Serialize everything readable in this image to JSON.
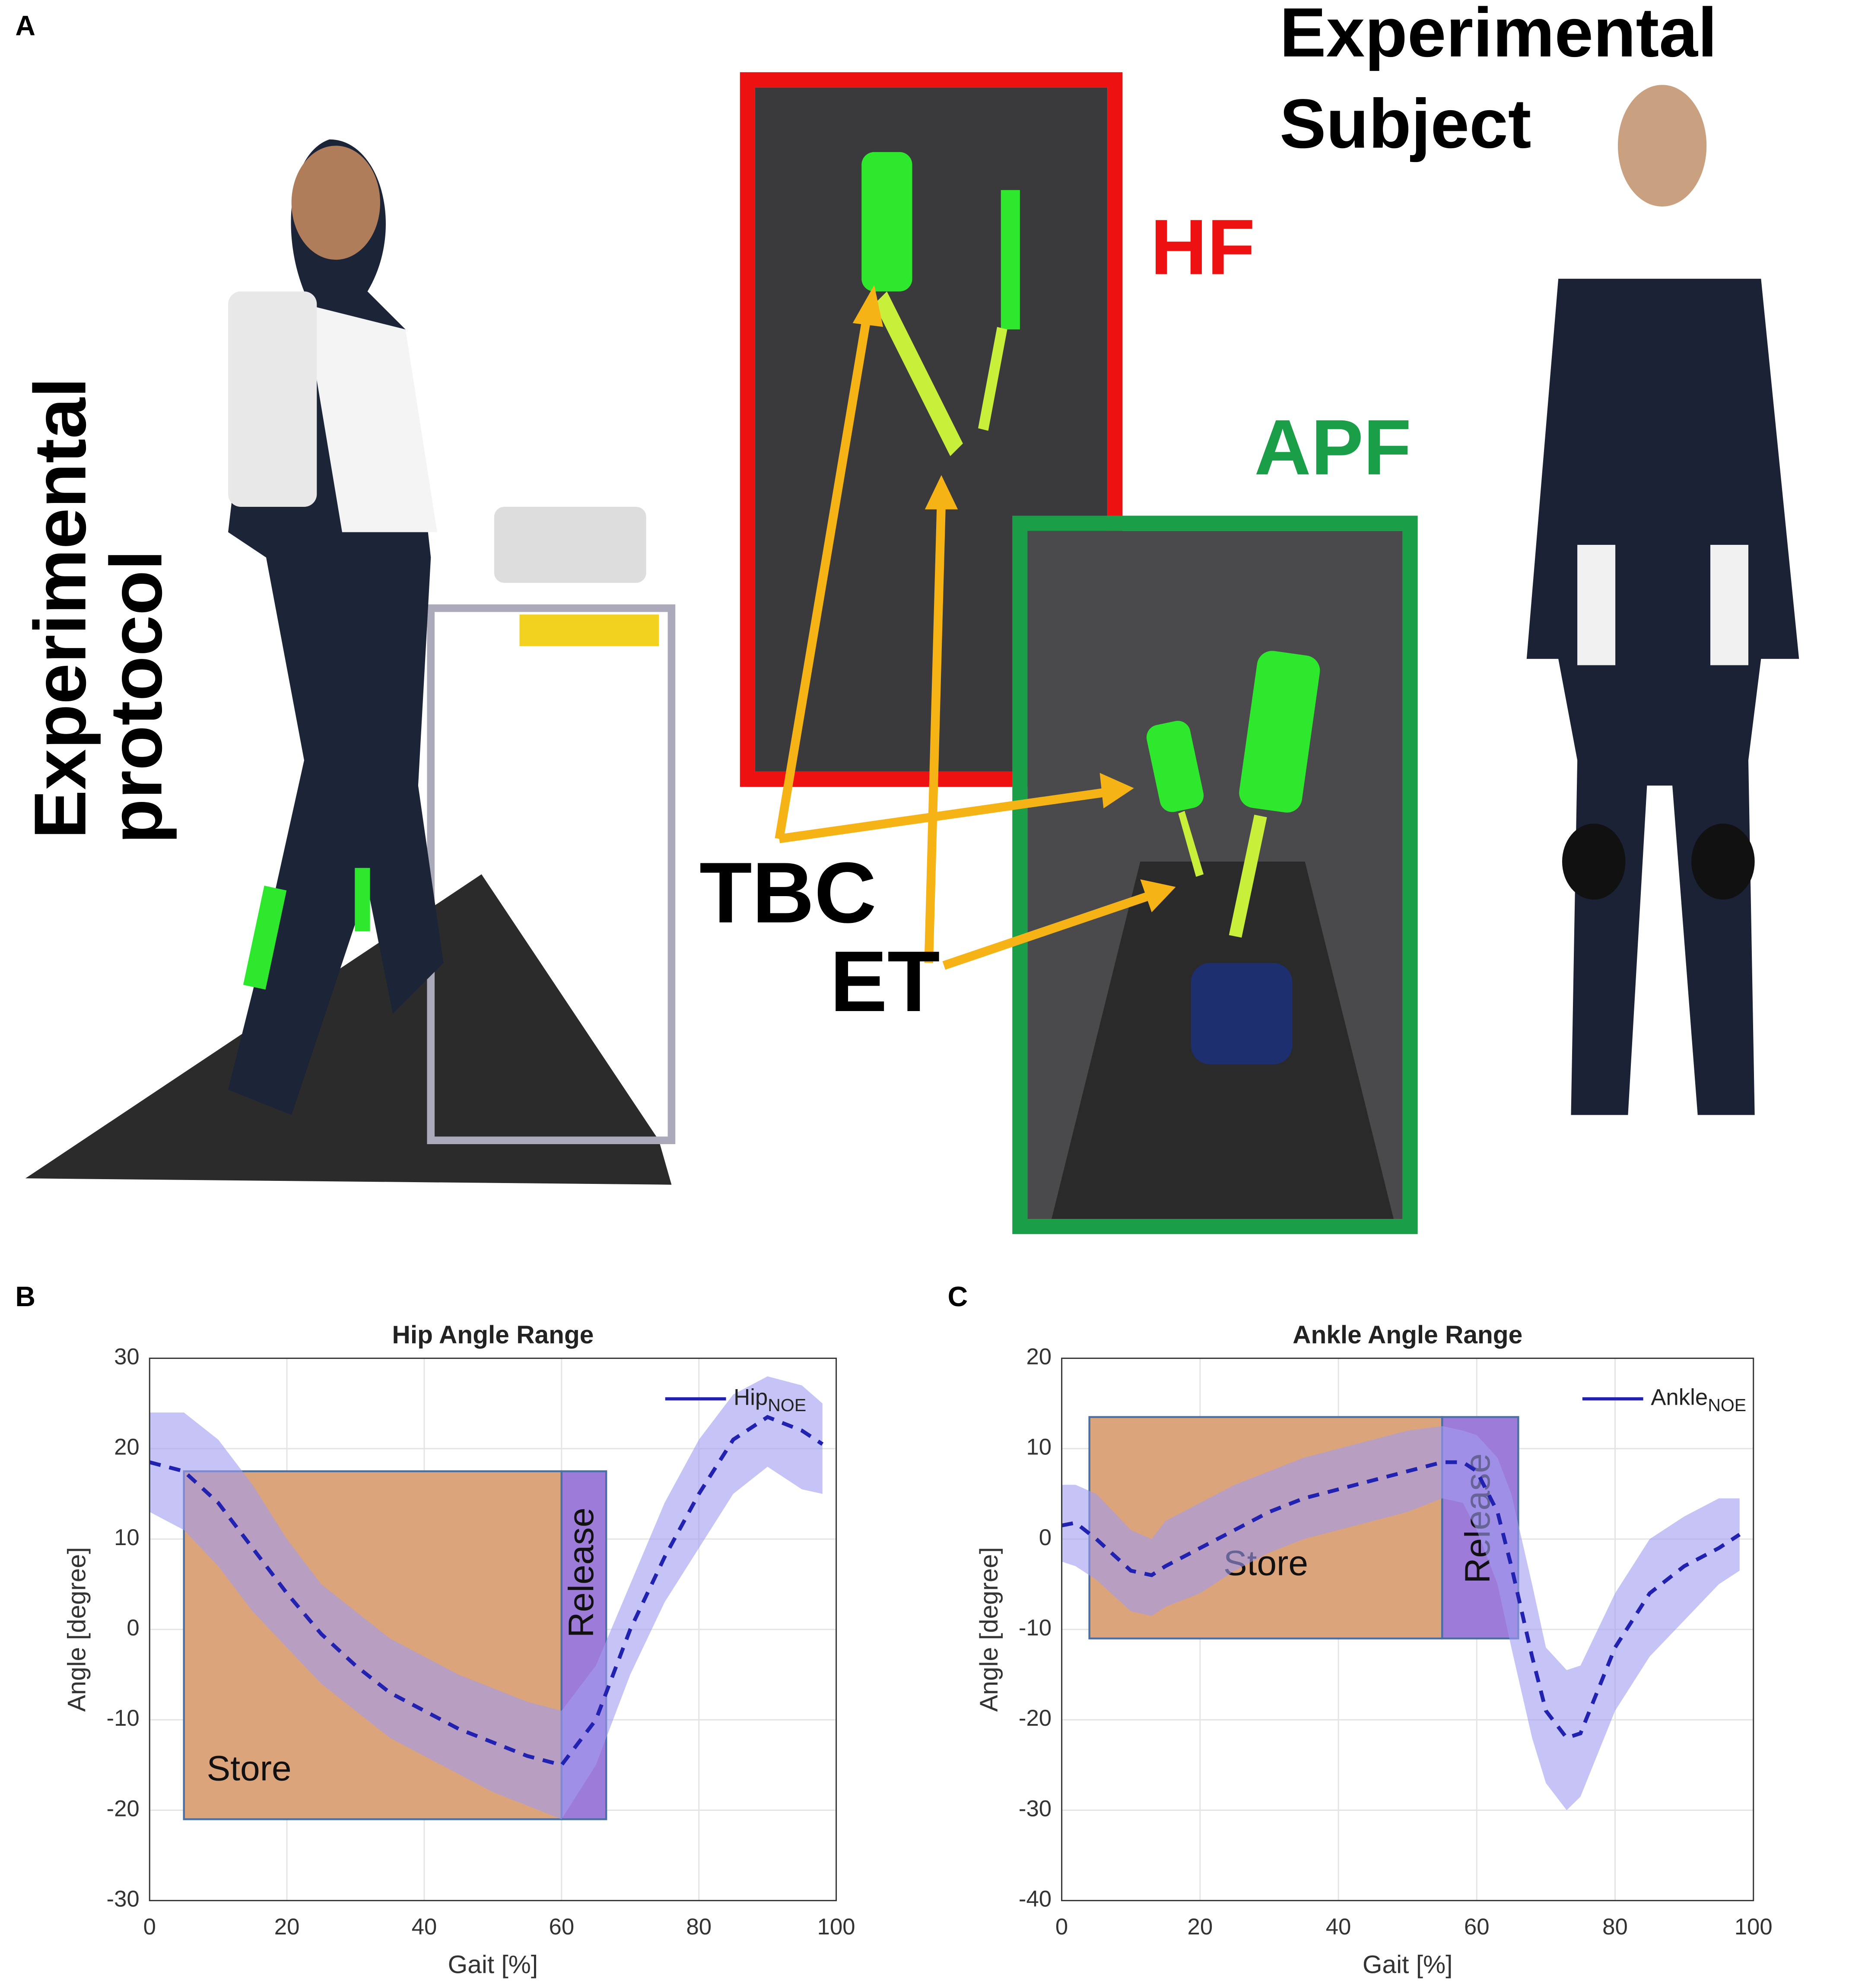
{
  "panel_a": {
    "label": "A",
    "left_title": [
      "Experimental",
      "protocol"
    ],
    "right_title": [
      "Experimental",
      "Subject"
    ],
    "hf": "HF",
    "apf": "APF",
    "tbc": "TBC",
    "et": "ET"
  },
  "chart_data": [
    {
      "type": "line",
      "panel_label": "B",
      "title": "Hip Angle Range",
      "xlabel": "Gait [%]",
      "ylabel": "Angle [degree]",
      "xlim": [
        0,
        100
      ],
      "xticks": [
        0,
        20,
        40,
        60,
        80,
        100
      ],
      "ylim": [
        -30,
        30
      ],
      "yticks": [
        -30,
        -20,
        -10,
        0,
        10,
        20,
        30
      ],
      "grid": true,
      "legend": "upper right",
      "x": [
        0,
        5,
        10,
        15,
        20,
        25,
        30,
        35,
        40,
        45,
        50,
        55,
        60,
        65,
        70,
        75,
        80,
        85,
        90,
        95,
        98
      ],
      "series": [
        {
          "name": "Hip",
          "subscript": "NOE",
          "color": "#2222b0",
          "dashed": true,
          "values": [
            18.5,
            17.5,
            14,
            9,
            4,
            -0.5,
            -4,
            -7,
            -9,
            -11,
            -12.5,
            -14,
            -15,
            -10,
            0,
            8,
            15,
            21,
            23.5,
            22,
            20.5
          ],
          "band": {
            "color": "#a09cf0",
            "upper": [
              24,
              24,
              21,
              16,
              10,
              5,
              2,
              -1,
              -3,
              -5,
              -6.5,
              -8,
              -9,
              -4,
              5,
              14,
              21,
              26,
              28,
              27,
              25
            ],
            "lower": [
              13,
              11,
              7,
              2,
              -2,
              -6,
              -9,
              -12,
              -14,
              -16,
              -18,
              -19.5,
              -21,
              -15,
              -5,
              3,
              9,
              15,
              18,
              15.5,
              15
            ]
          }
        }
      ],
      "regions": [
        {
          "label": "Store",
          "color": "#dba47a",
          "x": [
            5,
            60
          ],
          "y": [
            -21,
            17.5
          ]
        },
        {
          "label": "Release",
          "color": "#9d7bd8",
          "x": [
            60,
            66.5
          ],
          "y": [
            -21,
            17.5
          ]
        }
      ]
    },
    {
      "type": "line",
      "panel_label": "C",
      "title": "Ankle Angle Range",
      "xlabel": "Gait [%]",
      "ylabel": "Angle [degree]",
      "xlim": [
        0,
        100
      ],
      "xticks": [
        0,
        20,
        40,
        60,
        80,
        100
      ],
      "ylim": [
        -40,
        20
      ],
      "yticks": [
        -40,
        -30,
        -20,
        -10,
        0,
        10,
        20
      ],
      "grid": true,
      "legend": "upper right",
      "x": [
        0,
        2,
        5,
        10,
        13,
        15,
        20,
        25,
        30,
        35,
        40,
        45,
        50,
        55,
        58,
        60,
        63,
        65,
        68,
        70,
        73,
        75,
        80,
        85,
        90,
        95,
        98
      ],
      "series": [
        {
          "name": "Ankle",
          "subscript": "NOE",
          "color": "#2222b0",
          "dashed": true,
          "values": [
            1.5,
            1.8,
            0,
            -3.5,
            -4,
            -3,
            -1,
            1,
            3,
            4.5,
            5.5,
            6.5,
            7.5,
            8.5,
            8.5,
            7.5,
            3,
            -3,
            -13,
            -19,
            -22,
            -21.5,
            -12,
            -6,
            -3,
            -1,
            0.5
          ],
          "band": {
            "color": "#a09cf0",
            "upper": [
              6,
              6,
              5,
              1,
              0,
              2,
              4,
              6,
              7.5,
              9,
              10,
              11,
              12,
              12.5,
              12,
              11.5,
              9,
              5,
              -5,
              -12,
              -14.5,
              -14,
              -6,
              0,
              2.5,
              4.5,
              4.5
            ],
            "lower": [
              -2.5,
              -3,
              -4.5,
              -8,
              -8.5,
              -7.5,
              -6,
              -3.5,
              -1.5,
              0,
              1,
              2,
              3,
              4.5,
              4,
              1,
              -5,
              -12,
              -22,
              -27,
              -30,
              -28.5,
              -19,
              -13,
              -9,
              -5,
              -3.5
            ]
          }
        }
      ],
      "regions": [
        {
          "label": "Store",
          "color": "#dba47a",
          "x": [
            4,
            55
          ],
          "y": [
            -11,
            13.5
          ]
        },
        {
          "label": "Release",
          "color": "#9d7bd8",
          "x": [
            55,
            66
          ],
          "y": [
            -11,
            13.5
          ]
        }
      ]
    }
  ]
}
